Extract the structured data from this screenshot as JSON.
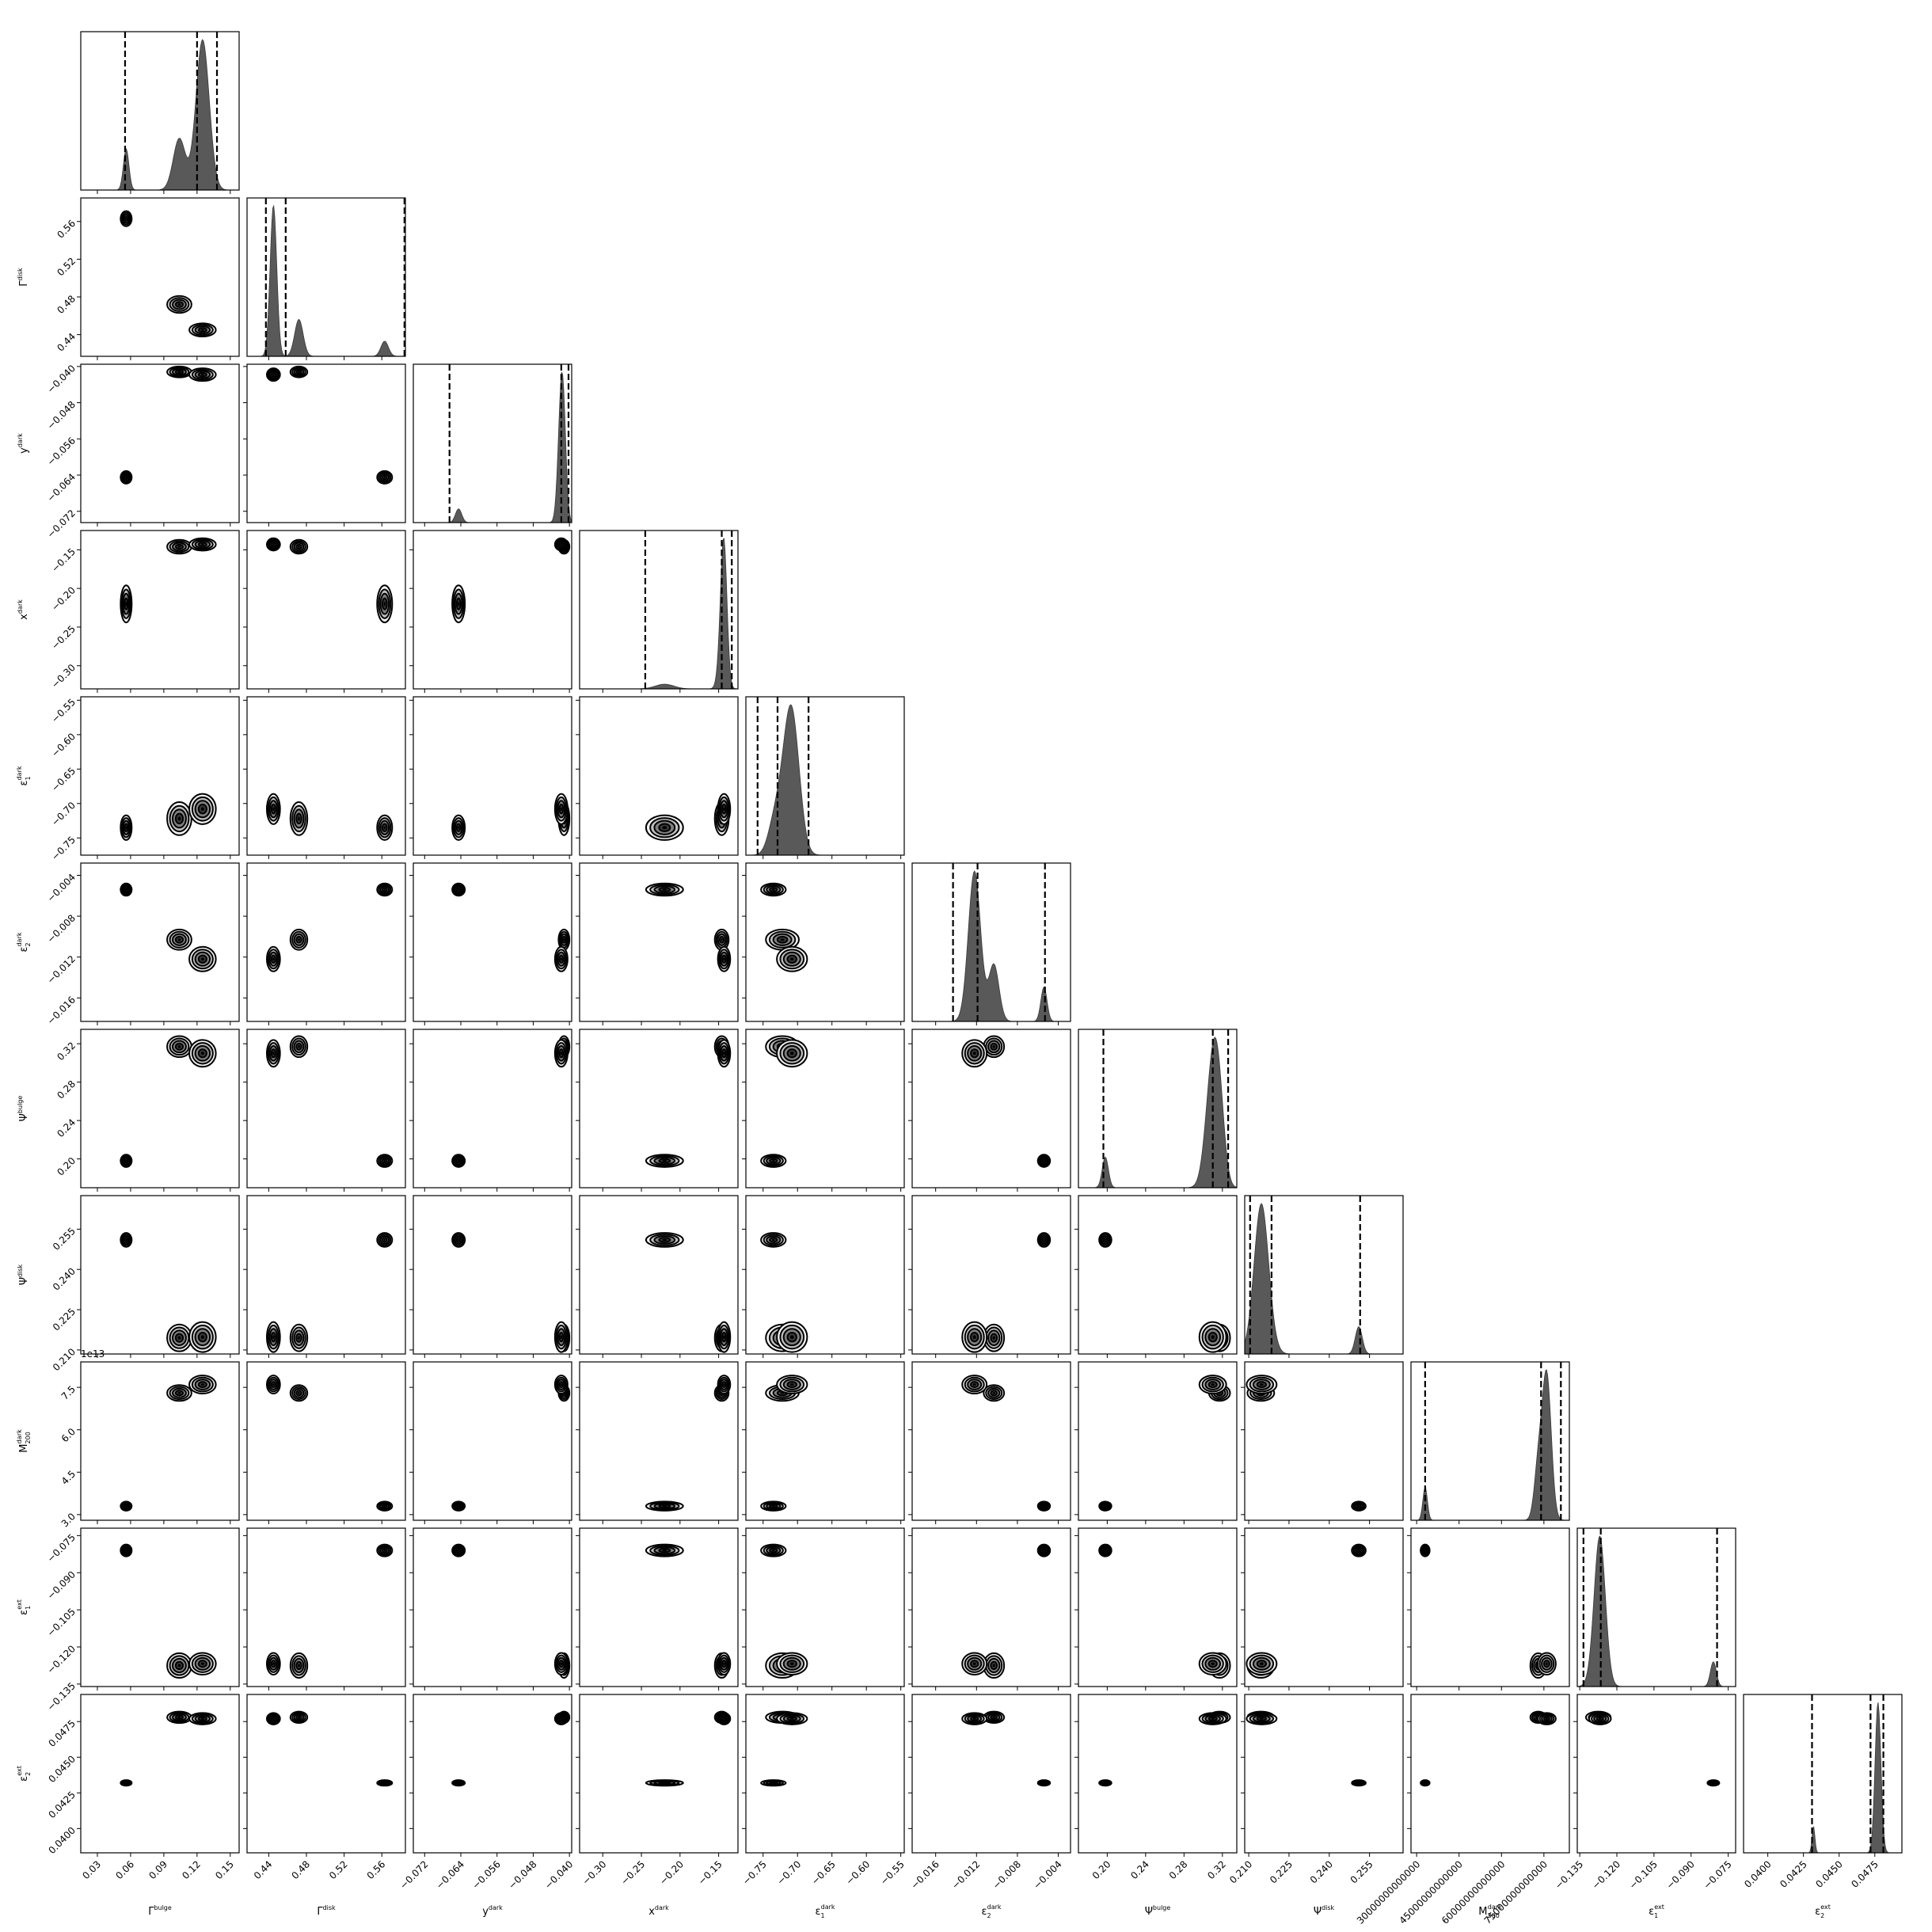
{
  "chart_data": {
    "type": "corner",
    "title": "",
    "offset_label": "1e13",
    "parameters": [
      {
        "key": "gb",
        "label": "Γbulge",
        "sym": "Γ",
        "sup": "bulge",
        "sub": "",
        "range": [
          0.015,
          0.158
        ],
        "ticks": [
          0.03,
          0.06,
          0.09,
          0.12,
          0.15
        ],
        "tick_labels": [
          "0.03",
          "0.06",
          "0.09",
          "0.12",
          "0.15"
        ],
        "quantiles": [
          0.055,
          0.12,
          0.138
        ]
      },
      {
        "key": "gd",
        "label": "Γdisk",
        "sym": "Γ",
        "sup": "disk",
        "sub": "",
        "range": [
          0.417,
          0.585
        ],
        "ticks": [
          0.44,
          0.48,
          0.52,
          0.56
        ],
        "tick_labels": [
          "0.44",
          "0.48",
          "0.52",
          "0.56"
        ],
        "quantiles": [
          0.437,
          0.458,
          0.584
        ]
      },
      {
        "key": "yd",
        "label": "ydark",
        "sym": "y",
        "sup": "dark",
        "sub": "",
        "range": [
          -0.0745,
          -0.0395
        ],
        "ticks": [
          -0.072,
          -0.064,
          -0.056,
          -0.048,
          -0.04
        ],
        "tick_labels": [
          "−0.072",
          "−0.064",
          "−0.056",
          "−0.048",
          "−0.040"
        ],
        "quantiles": [
          -0.0665,
          -0.0418,
          -0.0402
        ]
      },
      {
        "key": "xd",
        "label": "xdark",
        "sym": "x",
        "sup": "dark",
        "sub": "",
        "range": [
          -0.33,
          -0.125
        ],
        "ticks": [
          -0.3,
          -0.25,
          -0.2,
          -0.15
        ],
        "tick_labels": [
          "−0.30",
          "−0.25",
          "−0.20",
          "−0.15"
        ],
        "quantiles": [
          -0.245,
          -0.146,
          -0.133
        ]
      },
      {
        "key": "e1d",
        "label": "ε1dark",
        "sym": "ε",
        "sup": "dark",
        "sub": "1",
        "range": [
          -0.775,
          -0.545
        ],
        "ticks": [
          -0.75,
          -0.7,
          -0.65,
          -0.6,
          -0.55
        ],
        "tick_labels": [
          "−0.75",
          "−0.70",
          "−0.65",
          "−0.60",
          "−0.55"
        ],
        "quantiles": [
          -0.758,
          -0.729,
          -0.684
        ]
      },
      {
        "key": "e2d",
        "label": "ε2dark",
        "sym": "ε",
        "sup": "dark",
        "sub": "2",
        "range": [
          -0.0183,
          -0.0028
        ],
        "ticks": [
          -0.016,
          -0.012,
          -0.008,
          -0.004
        ],
        "tick_labels": [
          "−0.016",
          "−0.012",
          "−0.008",
          "−0.004"
        ],
        "quantiles": [
          -0.0143,
          -0.0119,
          -0.0053
        ]
      },
      {
        "key": "pb",
        "label": "Ψbulge",
        "sym": "Ψ",
        "sup": "bulge",
        "sub": "",
        "range": [
          0.17,
          0.335
        ],
        "ticks": [
          0.2,
          0.24,
          0.28,
          0.32
        ],
        "tick_labels": [
          "0.20",
          "0.24",
          "0.28",
          "0.32"
        ],
        "quantiles": [
          0.196,
          0.31,
          0.326
        ]
      },
      {
        "key": "pd",
        "label": "Ψdisk",
        "sym": "Ψ",
        "sup": "disk",
        "sub": "",
        "range": [
          0.2085,
          0.2675
        ],
        "ticks": [
          0.21,
          0.225,
          0.24,
          0.255
        ],
        "tick_labels": [
          "0.210",
          "0.225",
          "0.240",
          "0.255"
        ],
        "quantiles": [
          0.2105,
          0.2185,
          0.2515
        ]
      },
      {
        "key": "m",
        "label": "M200dark",
        "sym": "M",
        "sup": "dark",
        "sub": "200",
        "range": [
          28000000000000,
          84000000000000
        ],
        "ticks": [
          30000000000000,
          45000000000000,
          60000000000000,
          75000000000000
        ],
        "tick_labels": [
          "3.0",
          "4.5",
          "6.0",
          "7.5"
        ],
        "xtick_labels": [
          "30000000000000",
          "45000000000000",
          "60000000000000",
          "75000000000000"
        ],
        "quantiles": [
          33000000000000,
          74000000000000,
          81000000000000
        ]
      },
      {
        "key": "e1e",
        "label": "ε1ext",
        "sym": "ε",
        "sup": "ext",
        "sub": "1",
        "range": [
          -0.136,
          -0.072
        ],
        "ticks": [
          -0.135,
          -0.12,
          -0.105,
          -0.09,
          -0.075
        ],
        "tick_labels": [
          "−0.135",
          "−0.120",
          "−0.105",
          "−0.090",
          "−0.075"
        ],
        "quantiles": [
          -0.1335,
          -0.1265,
          -0.0795
        ]
      },
      {
        "key": "e2e",
        "label": "ε2ext",
        "sym": "ε",
        "sup": "ext",
        "sub": "2",
        "range": [
          0.0383,
          0.0494
        ],
        "ticks": [
          0.04,
          0.0425,
          0.045,
          0.0475
        ],
        "tick_labels": [
          "0.0400",
          "0.0425",
          "0.0450",
          "0.0475"
        ],
        "quantiles": [
          0.0431,
          0.0472,
          0.0481
        ]
      }
    ],
    "modes": [
      {
        "weight": 0.08,
        "center": [
          0.056,
          0.563,
          -0.0645,
          -0.22,
          -0.735,
          -0.0054,
          0.198,
          0.251,
          33000000000000,
          -0.081,
          0.0432
        ],
        "sigma": [
          0.0025,
          0.004,
          0.0007,
          0.012,
          0.009,
          0.0003,
          0.0032,
          0.0013,
          800000000000,
          0.0012,
          0.0001
        ]
      },
      {
        "weight": 0.22,
        "center": [
          0.104,
          0.472,
          -0.0412,
          -0.146,
          -0.722,
          -0.0103,
          0.317,
          0.2145,
          73000000000000,
          -0.1275,
          0.0478
        ],
        "sigma": [
          0.0055,
          0.0045,
          0.0006,
          0.0045,
          0.012,
          0.0005,
          0.0055,
          0.0025,
          1400000000000,
          0.0025,
          0.0002
        ]
      },
      {
        "weight": 0.7,
        "center": [
          0.125,
          0.445,
          -0.0418,
          -0.143,
          -0.708,
          -0.0122,
          0.31,
          0.2148,
          76000000000000,
          -0.1268,
          0.0477
        ],
        "sigma": [
          0.006,
          0.0035,
          0.0007,
          0.004,
          0.011,
          0.0006,
          0.007,
          0.0028,
          1600000000000,
          0.0022,
          0.0002
        ]
      }
    ]
  }
}
